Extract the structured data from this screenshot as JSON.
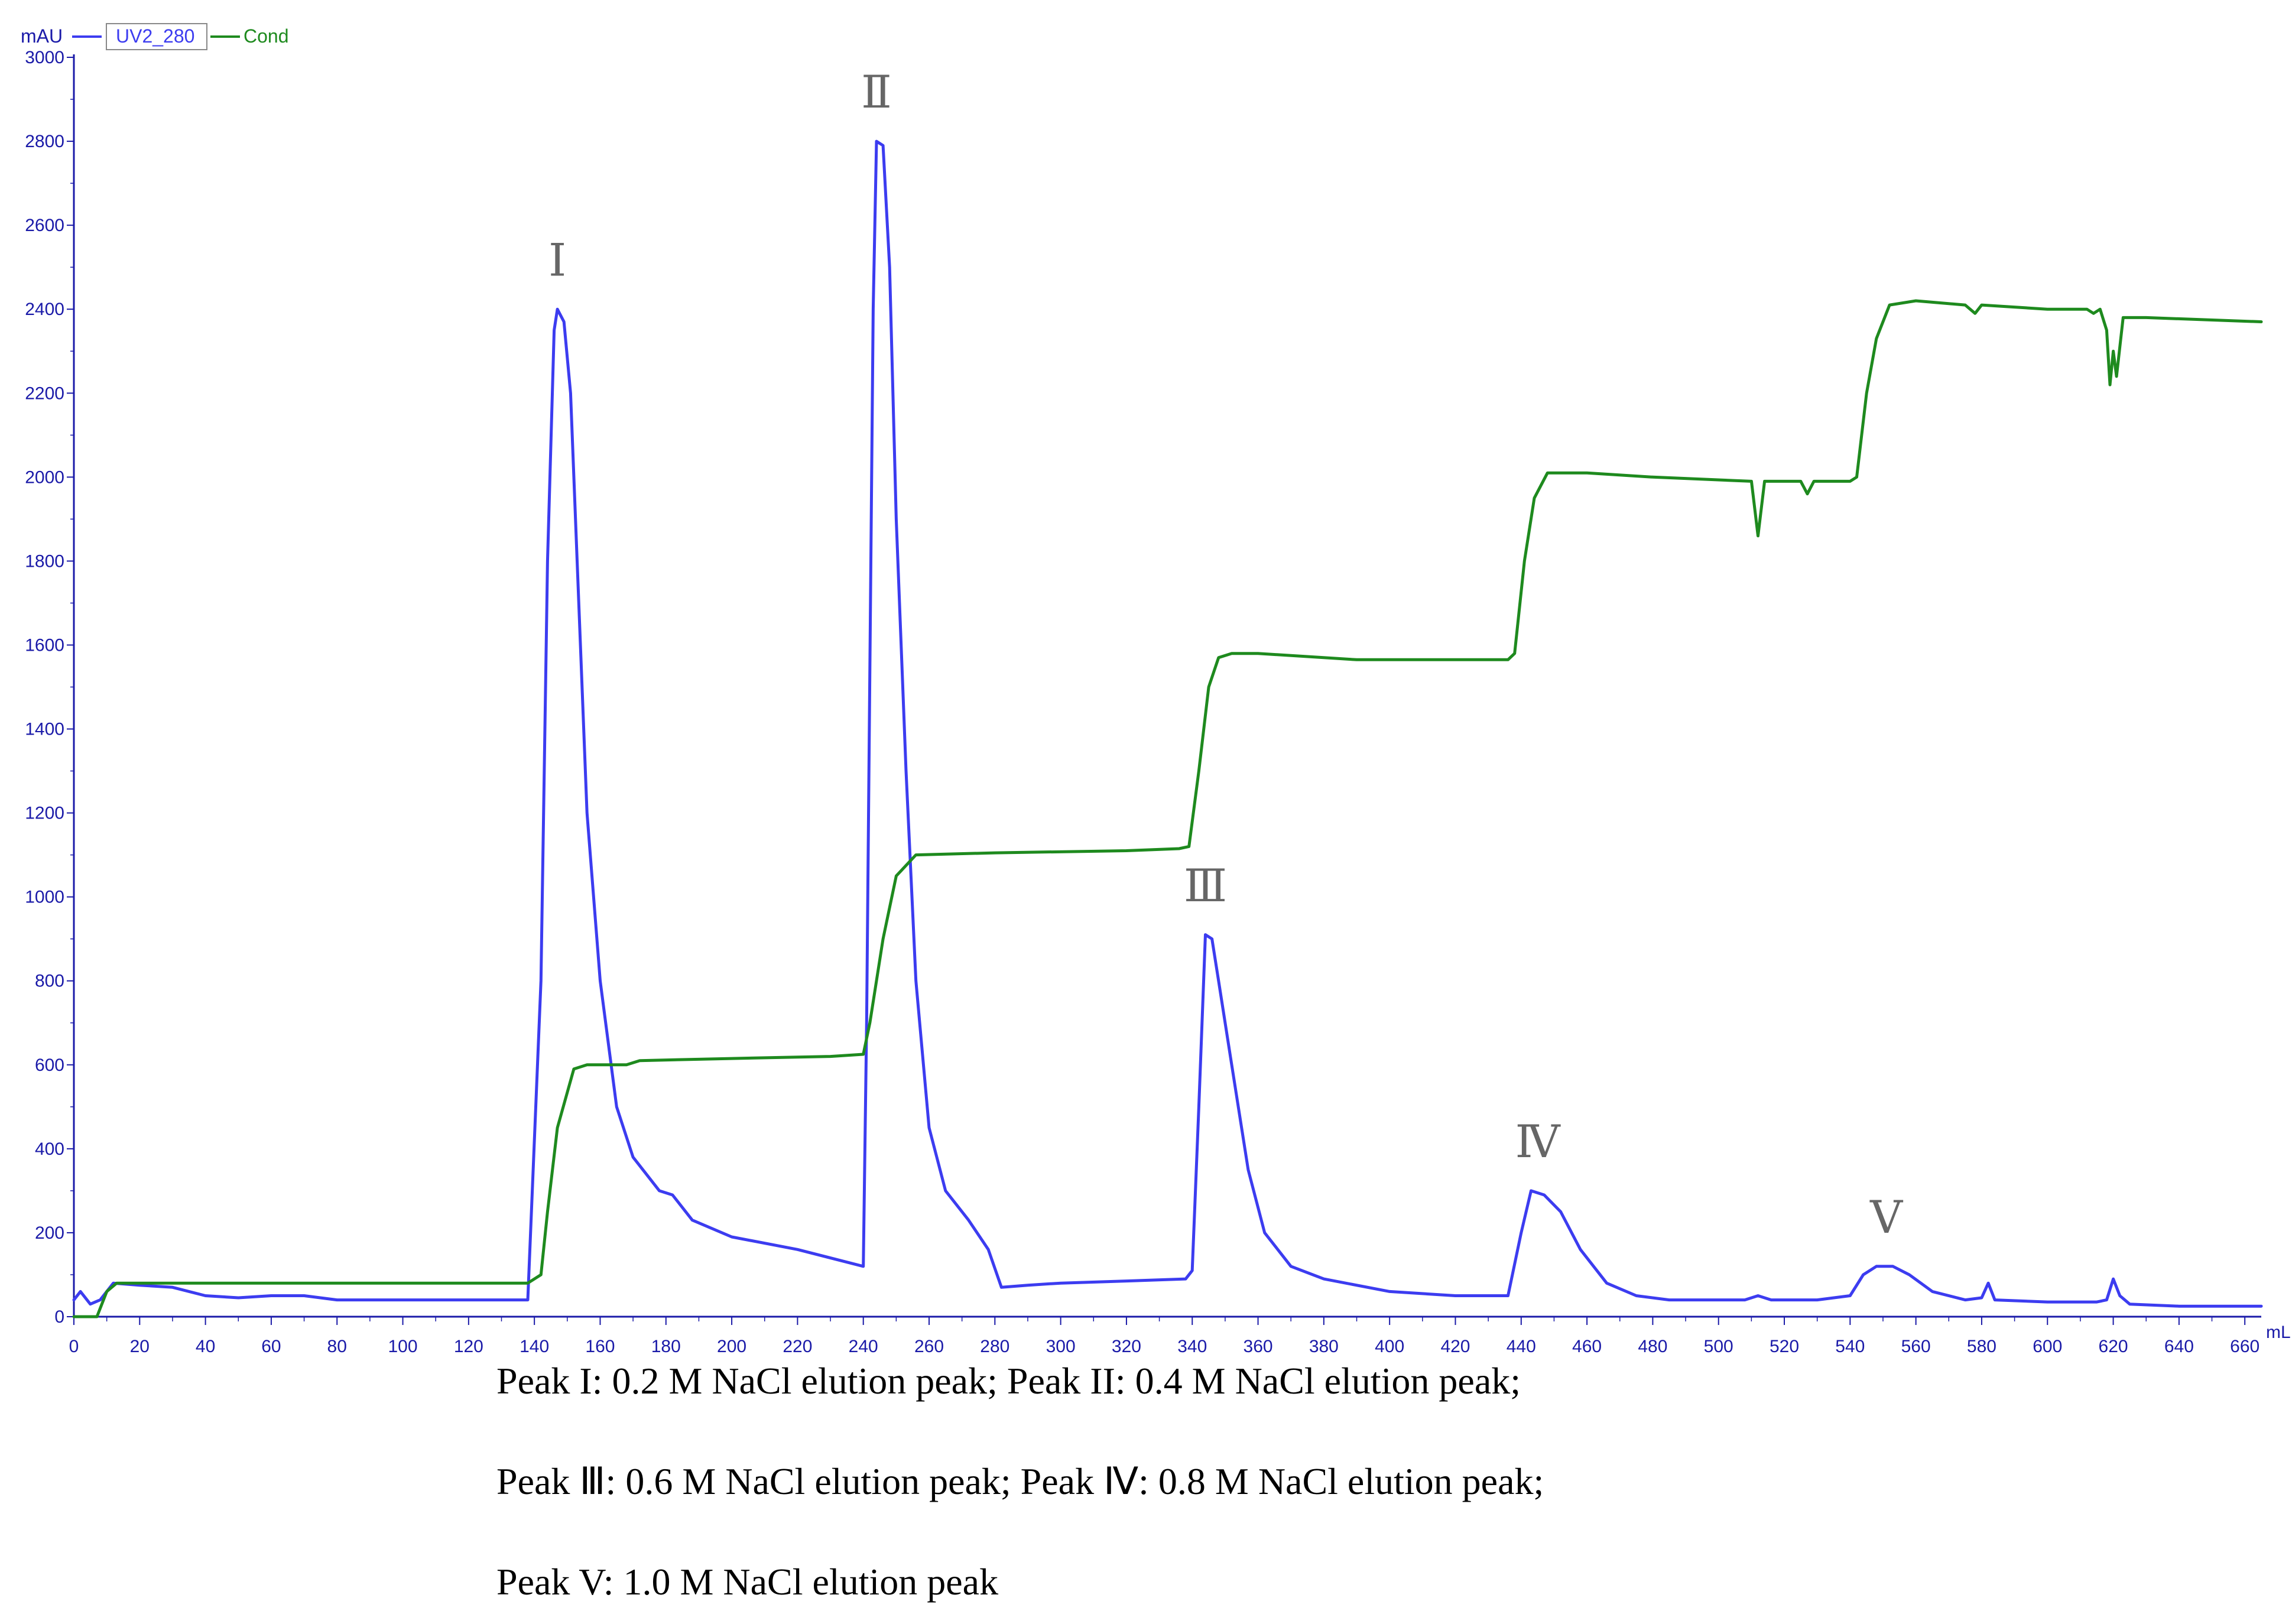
{
  "chart_data": {
    "type": "line",
    "xlabel": "mL",
    "ylabel": "mAU",
    "xlim": [
      0,
      665
    ],
    "ylim": [
      0,
      3000
    ],
    "x_ticks": [
      0,
      20,
      40,
      60,
      80,
      100,
      120,
      140,
      160,
      180,
      200,
      220,
      240,
      260,
      280,
      300,
      320,
      340,
      360,
      380,
      400,
      420,
      440,
      460,
      480,
      500,
      520,
      540,
      560,
      580,
      600,
      620,
      640,
      660
    ],
    "y_ticks": [
      0,
      200,
      400,
      600,
      800,
      1000,
      1200,
      1400,
      1600,
      1800,
      2000,
      2200,
      2400,
      2600,
      2800,
      3000
    ],
    "legend": [
      {
        "name": "UV2_280",
        "color": "#3c3cf0"
      },
      {
        "name": "Cond",
        "color": "#1e8a1e"
      }
    ],
    "series": [
      {
        "name": "UV2_280",
        "color": "#3c3cf0",
        "points": [
          [
            0,
            40
          ],
          [
            2,
            60
          ],
          [
            5,
            30
          ],
          [
            8,
            40
          ],
          [
            12,
            80
          ],
          [
            20,
            75
          ],
          [
            30,
            70
          ],
          [
            40,
            50
          ],
          [
            50,
            45
          ],
          [
            60,
            50
          ],
          [
            70,
            50
          ],
          [
            80,
            40
          ],
          [
            100,
            40
          ],
          [
            120,
            40
          ],
          [
            138,
            40
          ],
          [
            142,
            800
          ],
          [
            144,
            1800
          ],
          [
            146,
            2350
          ],
          [
            147,
            2400
          ],
          [
            149,
            2370
          ],
          [
            151,
            2200
          ],
          [
            153,
            1800
          ],
          [
            156,
            1200
          ],
          [
            160,
            800
          ],
          [
            165,
            500
          ],
          [
            170,
            380
          ],
          [
            178,
            300
          ],
          [
            182,
            290
          ],
          [
            188,
            230
          ],
          [
            200,
            190
          ],
          [
            220,
            160
          ],
          [
            235,
            130
          ],
          [
            240,
            120
          ],
          [
            241,
            700
          ],
          [
            243,
            2400
          ],
          [
            244,
            2800
          ],
          [
            246,
            2790
          ],
          [
            248,
            2500
          ],
          [
            250,
            1900
          ],
          [
            253,
            1300
          ],
          [
            256,
            800
          ],
          [
            260,
            450
          ],
          [
            265,
            300
          ],
          [
            272,
            230
          ],
          [
            278,
            160
          ],
          [
            282,
            70
          ],
          [
            290,
            75
          ],
          [
            300,
            80
          ],
          [
            320,
            85
          ],
          [
            338,
            90
          ],
          [
            340,
            110
          ],
          [
            342,
            500
          ],
          [
            344,
            910
          ],
          [
            346,
            900
          ],
          [
            348,
            800
          ],
          [
            352,
            600
          ],
          [
            357,
            350
          ],
          [
            362,
            200
          ],
          [
            370,
            120
          ],
          [
            380,
            90
          ],
          [
            400,
            60
          ],
          [
            420,
            50
          ],
          [
            436,
            50
          ],
          [
            440,
            200
          ],
          [
            443,
            300
          ],
          [
            447,
            290
          ],
          [
            452,
            250
          ],
          [
            458,
            160
          ],
          [
            466,
            80
          ],
          [
            475,
            50
          ],
          [
            485,
            40
          ],
          [
            495,
            40
          ],
          [
            508,
            40
          ],
          [
            512,
            50
          ],
          [
            516,
            40
          ],
          [
            530,
            40
          ],
          [
            540,
            50
          ],
          [
            544,
            100
          ],
          [
            548,
            120
          ],
          [
            553,
            120
          ],
          [
            558,
            100
          ],
          [
            565,
            60
          ],
          [
            575,
            40
          ],
          [
            580,
            45
          ],
          [
            582,
            80
          ],
          [
            584,
            40
          ],
          [
            600,
            35
          ],
          [
            615,
            35
          ],
          [
            618,
            40
          ],
          [
            620,
            90
          ],
          [
            622,
            50
          ],
          [
            625,
            30
          ],
          [
            640,
            25
          ],
          [
            665,
            25
          ]
        ]
      },
      {
        "name": "Cond",
        "color": "#1e8a1e",
        "points": [
          [
            0,
            0
          ],
          [
            7,
            0
          ],
          [
            10,
            60
          ],
          [
            13,
            80
          ],
          [
            20,
            80
          ],
          [
            60,
            80
          ],
          [
            100,
            80
          ],
          [
            138,
            80
          ],
          [
            142,
            100
          ],
          [
            144,
            250
          ],
          [
            147,
            450
          ],
          [
            152,
            590
          ],
          [
            156,
            600
          ],
          [
            168,
            600
          ],
          [
            172,
            610
          ],
          [
            200,
            615
          ],
          [
            230,
            620
          ],
          [
            240,
            625
          ],
          [
            242,
            700
          ],
          [
            246,
            900
          ],
          [
            250,
            1050
          ],
          [
            256,
            1100
          ],
          [
            280,
            1105
          ],
          [
            320,
            1110
          ],
          [
            336,
            1115
          ],
          [
            339,
            1120
          ],
          [
            342,
            1300
          ],
          [
            345,
            1500
          ],
          [
            348,
            1570
          ],
          [
            352,
            1580
          ],
          [
            360,
            1580
          ],
          [
            390,
            1565
          ],
          [
            420,
            1565
          ],
          [
            436,
            1565
          ],
          [
            438,
            1580
          ],
          [
            441,
            1800
          ],
          [
            444,
            1950
          ],
          [
            448,
            2010
          ],
          [
            460,
            2010
          ],
          [
            480,
            2000
          ],
          [
            510,
            1990
          ],
          [
            512,
            1860
          ],
          [
            514,
            1990
          ],
          [
            525,
            1990
          ],
          [
            527,
            1960
          ],
          [
            529,
            1990
          ],
          [
            540,
            1990
          ],
          [
            542,
            2000
          ],
          [
            545,
            2200
          ],
          [
            548,
            2330
          ],
          [
            552,
            2410
          ],
          [
            560,
            2420
          ],
          [
            575,
            2410
          ],
          [
            578,
            2390
          ],
          [
            580,
            2410
          ],
          [
            600,
            2400
          ],
          [
            612,
            2400
          ],
          [
            614,
            2390
          ],
          [
            616,
            2400
          ],
          [
            618,
            2350
          ],
          [
            619,
            2220
          ],
          [
            620,
            2300
          ],
          [
            621,
            2240
          ],
          [
            623,
            2380
          ],
          [
            630,
            2380
          ],
          [
            665,
            2370
          ]
        ]
      }
    ],
    "peak_labels": [
      {
        "text": "Ⅰ",
        "x": 147,
        "y": 2480
      },
      {
        "text": "Ⅱ",
        "x": 244,
        "y": 2880
      },
      {
        "text": "Ⅲ",
        "x": 344,
        "y": 990
      },
      {
        "text": "Ⅳ",
        "x": 445,
        "y": 380
      },
      {
        "text": "Ⅴ",
        "x": 551,
        "y": 200
      }
    ]
  },
  "captions": {
    "line1": "Peak I: 0.2 M NaCl elution peak;  Peak II: 0.4 M NaCl elution peak;",
    "line2": "Peak Ⅲ: 0.6 M NaCl elution peak; Peak Ⅳ: 0.8 M NaCl elution peak;",
    "line3": "Peak V: 1.0 M NaCl elution peak"
  }
}
